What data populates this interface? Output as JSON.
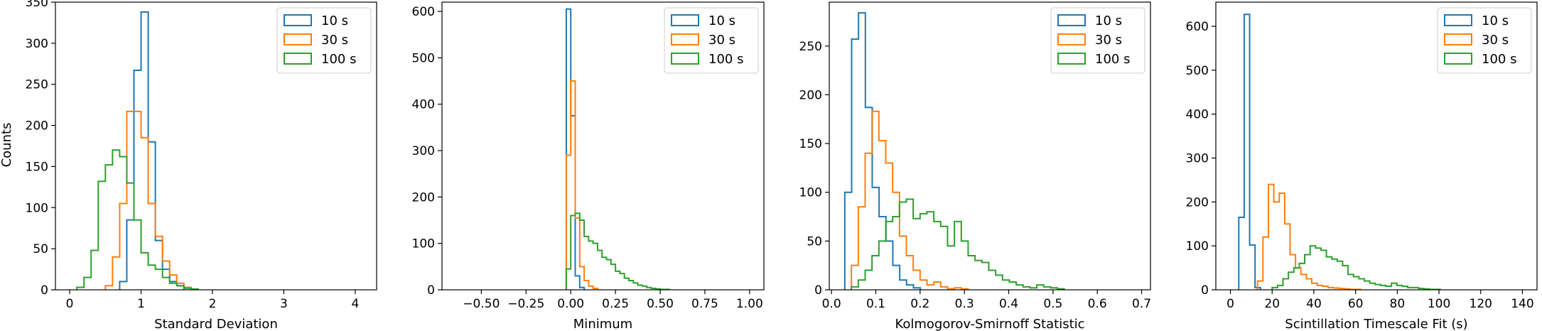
{
  "figure": {
    "ylabel": "Counts",
    "colors": {
      "10 s": "#1f77b4",
      "30 s": "#ff7f0e",
      "100 s": "#2ca02c"
    }
  },
  "chart_data": [
    {
      "type": "histogram",
      "xlabel": "Standard Deviation",
      "ylabel": "Counts",
      "xlim": [
        -0.2,
        4.3
      ],
      "ylim": [
        0,
        350
      ],
      "xticks": [
        0,
        1,
        2,
        3,
        4
      ],
      "yticks": [
        0,
        50,
        100,
        150,
        200,
        250,
        300,
        350
      ],
      "legend": {
        "position": "top-right",
        "entries": [
          "10 s",
          "30 s",
          "100 s"
        ]
      },
      "series": [
        {
          "name": "10 s",
          "binStart": 0.7,
          "binWidth": 0.1,
          "counts": [
            10,
            85,
            267,
            338,
            180,
            60,
            25,
            10,
            5
          ]
        },
        {
          "name": "30 s",
          "binStart": 0.5,
          "binWidth": 0.1,
          "counts": [
            5,
            40,
            105,
            217,
            217,
            185,
            105,
            65,
            35,
            18,
            8,
            3
          ]
        },
        {
          "name": "100 s",
          "binStart": 0.1,
          "binWidth": 0.1,
          "counts": [
            3,
            15,
            48,
            132,
            152,
            170,
            162,
            130,
            85,
            45,
            30,
            25,
            15,
            8,
            5,
            2,
            1
          ]
        }
      ]
    },
    {
      "type": "histogram",
      "xlabel": "Minimum",
      "ylabel": "",
      "xlim": [
        -0.72,
        1.08
      ],
      "ylim": [
        0,
        620
      ],
      "xticks": [
        -0.5,
        -0.25,
        0.0,
        0.25,
        0.5,
        0.75,
        1.0
      ],
      "xtickLabels": [
        "−0.50",
        "−0.25",
        "0.00",
        "0.25",
        "0.50",
        "0.75",
        "1.00"
      ],
      "yticks": [
        0,
        100,
        200,
        300,
        400,
        500,
        600
      ],
      "legend": {
        "position": "top-right",
        "entries": [
          "10 s",
          "30 s",
          "100 s"
        ]
      },
      "series": [
        {
          "name": "10 s",
          "binStart": -0.025,
          "binWidth": 0.025,
          "counts": [
            605,
            375,
            30,
            5
          ]
        },
        {
          "name": "30 s",
          "binStart": -0.025,
          "binWidth": 0.025,
          "counts": [
            290,
            450,
            155,
            50,
            20,
            8,
            3
          ]
        },
        {
          "name": "100 s",
          "binStart": -0.025,
          "binWidth": 0.025,
          "counts": [
            45,
            160,
            165,
            150,
            115,
            105,
            100,
            85,
            70,
            65,
            55,
            40,
            35,
            25,
            20,
            15,
            10,
            8,
            5,
            3,
            2,
            1,
            1
          ]
        }
      ]
    },
    {
      "type": "histogram",
      "xlabel": "Kolmogorov-Smirnoff Statistic",
      "ylabel": "",
      "xlim": [
        -0.005,
        0.72
      ],
      "ylim": [
        0,
        295
      ],
      "xticks": [
        0.0,
        0.1,
        0.2,
        0.3,
        0.4,
        0.5,
        0.6,
        0.7
      ],
      "xtickLabels": [
        "0.0",
        "0.1",
        "0.2",
        "0.3",
        "0.4",
        "0.5",
        "0.6",
        "0.7"
      ],
      "yticks": [
        0,
        50,
        100,
        150,
        200,
        250
      ],
      "legend": {
        "position": "top-right",
        "entries": [
          "10 s",
          "30 s",
          "100 s"
        ]
      },
      "series": [
        {
          "name": "10 s",
          "binStart": 0.03,
          "binWidth": 0.0155,
          "counts": [
            100,
            257,
            284,
            187,
            105,
            75,
            50,
            25,
            10,
            5,
            2
          ]
        },
        {
          "name": "30 s",
          "binStart": 0.045,
          "binWidth": 0.0155,
          "counts": [
            25,
            85,
            140,
            183,
            153,
            130,
            100,
            55,
            35,
            20,
            10,
            5,
            8,
            3,
            1,
            2,
            1
          ]
        },
        {
          "name": "100 s",
          "binStart": 0.045,
          "binWidth": 0.0155,
          "counts": [
            3,
            10,
            20,
            35,
            50,
            70,
            75,
            90,
            93,
            73,
            78,
            80,
            70,
            65,
            45,
            70,
            50,
            35,
            30,
            28,
            20,
            15,
            10,
            8,
            5,
            3,
            2,
            5,
            3,
            2,
            1
          ]
        }
      ]
    },
    {
      "type": "histogram",
      "xlabel": "Scintillation Timescale Fit (s)",
      "ylabel": "",
      "xlim": [
        -7,
        147
      ],
      "ylim": [
        0,
        655
      ],
      "xticks": [
        0,
        20,
        40,
        60,
        80,
        100,
        120,
        140
      ],
      "yticks": [
        0,
        100,
        200,
        300,
        400,
        500,
        600
      ],
      "legend": {
        "position": "top-right",
        "entries": [
          "10 s",
          "30 s",
          "100 s"
        ]
      },
      "series": [
        {
          "name": "10 s",
          "binStart": 4,
          "binWidth": 2.6,
          "counts": [
            165,
            627,
            102,
            5
          ]
        },
        {
          "name": "30 s",
          "binStart": 13,
          "binWidth": 2.6,
          "counts": [
            20,
            120,
            240,
            200,
            220,
            150,
            80,
            50,
            35,
            25,
            15,
            10,
            8,
            5,
            4,
            3,
            2,
            1,
            1
          ]
        },
        {
          "name": "100 s",
          "binStart": 20,
          "binWidth": 2.6,
          "counts": [
            5,
            10,
            25,
            40,
            50,
            60,
            80,
            100,
            95,
            90,
            75,
            70,
            65,
            55,
            35,
            30,
            25,
            20,
            15,
            12,
            10,
            8,
            15,
            10,
            8,
            5,
            5,
            3,
            2,
            1,
            1
          ]
        }
      ]
    }
  ]
}
